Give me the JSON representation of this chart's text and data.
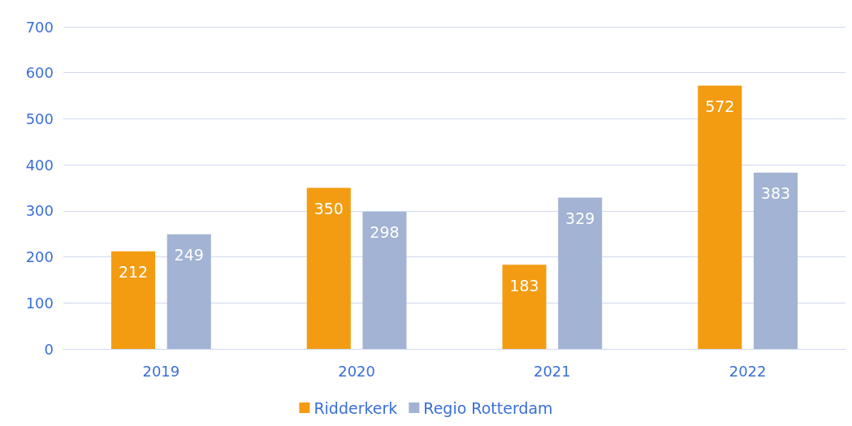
{
  "chart_data": {
    "type": "bar",
    "categories": [
      "2019",
      "2020",
      "2021",
      "2022"
    ],
    "series": [
      {
        "name": "Ridderkerk",
        "color": "#f39c12",
        "values": [
          212,
          350,
          183,
          572
        ]
      },
      {
        "name": "Regio Rotterdam",
        "color": "#a2b3d3",
        "values": [
          249,
          298,
          329,
          383
        ]
      }
    ],
    "ylim": [
      0,
      700
    ],
    "yticks": [
      0,
      100,
      200,
      300,
      400,
      500,
      600,
      700
    ],
    "grid": "y",
    "legend": "bottom",
    "data_labels": true
  }
}
